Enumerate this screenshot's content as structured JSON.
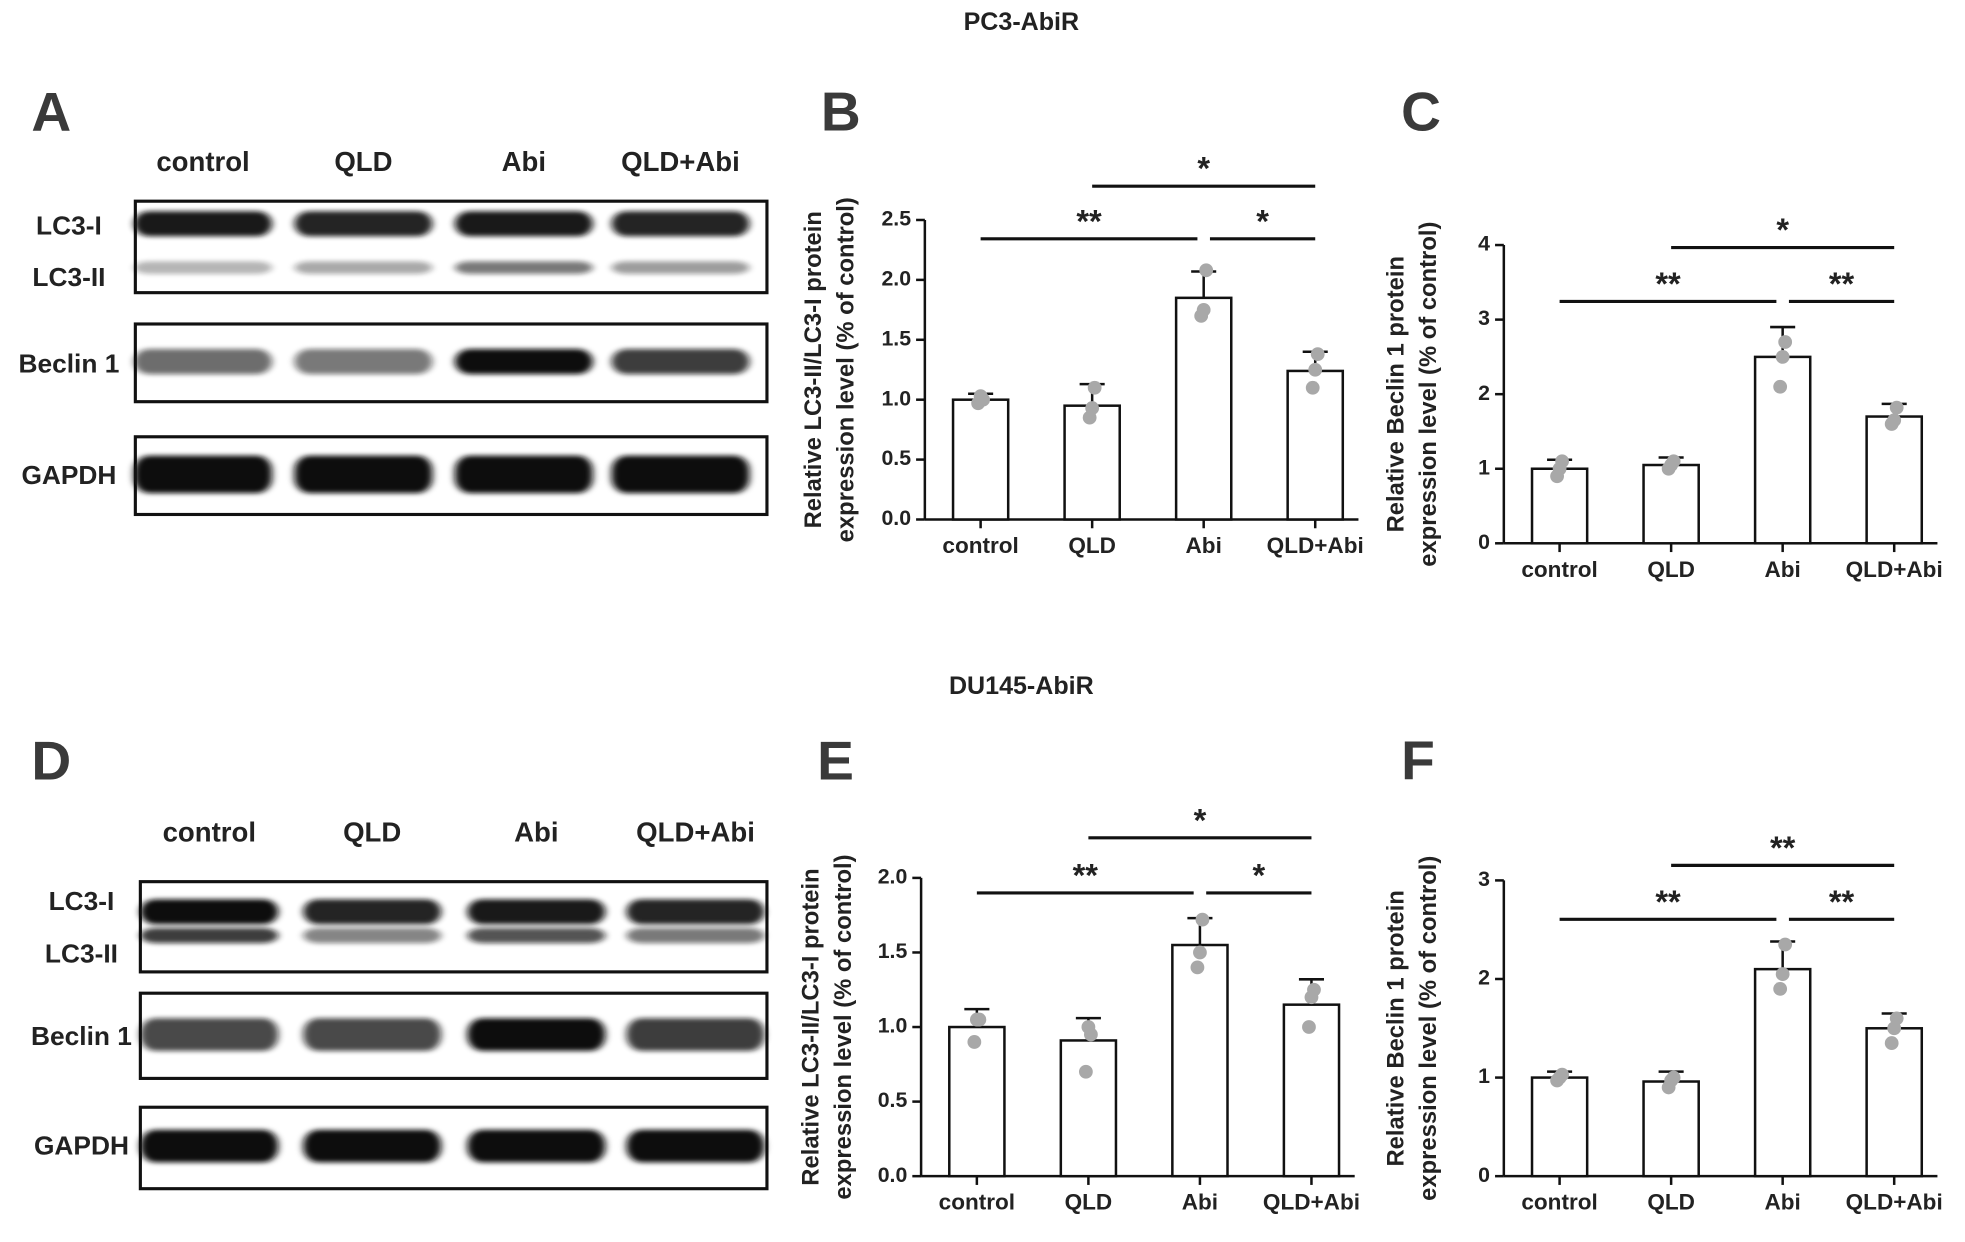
{
  "headings": [
    "PC3-AbiR",
    "DU145-AbiR"
  ],
  "blots": [
    {
      "panel": "A",
      "lanes": [
        "control",
        "QLD",
        "Abi",
        "QLD+Abi"
      ],
      "rows": [
        "LC3-I",
        "LC3-II",
        "Beclin 1",
        "GAPDH"
      ]
    },
    {
      "panel": "D",
      "lanes": [
        "control",
        "QLD",
        "Abi",
        "QLD+Abi"
      ],
      "rows": [
        "LC3-I",
        "LC3-II",
        "Beclin 1",
        "GAPDH"
      ]
    }
  ],
  "chart_data": [
    {
      "type": "bar",
      "panel": "B",
      "ylabel": [
        "Relative LC3-II/LC3-I protein",
        "expression level (% of control)"
      ],
      "categories": [
        "control",
        "QLD",
        "Abi",
        "QLD+Abi"
      ],
      "values": [
        1.0,
        0.95,
        1.85,
        1.24
      ],
      "errors": [
        0.05,
        0.18,
        0.22,
        0.16
      ],
      "points": [
        [
          1.0,
          0.97,
          1.03
        ],
        [
          1.1,
          0.85,
          0.93
        ],
        [
          2.08,
          1.7,
          1.75
        ],
        [
          1.38,
          1.1,
          1.25
        ]
      ],
      "ylim": [
        0,
        2.5
      ],
      "yticks": [
        {
          "value": 0,
          "label": "0.0"
        },
        0.5,
        {
          "value": 1,
          "label": "1.0"
        },
        1.5,
        {
          "value": 2,
          "label": "2.0"
        },
        2.5
      ],
      "significance": [
        {
          "label": "**",
          "from": 0,
          "to": 2
        },
        {
          "label": "*",
          "from": 2,
          "to": 3
        },
        {
          "label": "*",
          "from": 1,
          "to": 3
        }
      ]
    },
    {
      "type": "bar",
      "panel": "C",
      "ylabel": [
        "Relative Beclin 1 protein",
        "expression level (% of control)"
      ],
      "categories": [
        "control",
        "QLD",
        "Abi",
        "QLD+Abi"
      ],
      "values": [
        1.0,
        1.05,
        2.5,
        1.7
      ],
      "errors": [
        0.12,
        0.1,
        0.4,
        0.17
      ],
      "points": [
        [
          1.1,
          0.9,
          1.0
        ],
        [
          1.1,
          1.0,
          1.05
        ],
        [
          2.7,
          2.1,
          2.5
        ],
        [
          1.82,
          1.6,
          1.65
        ]
      ],
      "ylim": [
        0,
        4
      ],
      "yticks": [
        0,
        1,
        2,
        3,
        4
      ],
      "significance": [
        {
          "label": "**",
          "from": 0,
          "to": 2
        },
        {
          "label": "**",
          "from": 2,
          "to": 3
        },
        {
          "label": "*",
          "from": 1,
          "to": 3
        }
      ]
    },
    {
      "type": "bar",
      "panel": "E",
      "ylabel": [
        "Relative LC3-II/LC3-I protein",
        "expression level (% of control)"
      ],
      "categories": [
        "control",
        "QLD",
        "Abi",
        "QLD+Abi"
      ],
      "values": [
        1.0,
        0.91,
        1.55,
        1.15
      ],
      "errors": [
        0.12,
        0.15,
        0.18,
        0.17
      ],
      "points": [
        [
          1.05,
          0.9,
          1.05
        ],
        [
          0.95,
          0.7,
          1.0
        ],
        [
          1.72,
          1.4,
          1.5
        ],
        [
          1.25,
          1.0,
          1.2
        ]
      ],
      "ylim": [
        0,
        2
      ],
      "yticks": [
        {
          "value": 0,
          "label": "0.0"
        },
        0.5,
        {
          "value": 1,
          "label": "1.0"
        },
        1.5,
        {
          "value": 2,
          "label": "2.0"
        }
      ],
      "significance": [
        {
          "label": "**",
          "from": 0,
          "to": 2
        },
        {
          "label": "*",
          "from": 2,
          "to": 3
        },
        {
          "label": "*",
          "from": 1,
          "to": 3
        }
      ]
    },
    {
      "type": "bar",
      "panel": "F",
      "ylabel": [
        "Relative Beclin 1 protein",
        "expression level (% of control)"
      ],
      "categories": [
        "control",
        "QLD",
        "Abi",
        "QLD+Abi"
      ],
      "values": [
        1.0,
        0.96,
        2.1,
        1.5
      ],
      "errors": [
        0.06,
        0.1,
        0.28,
        0.15
      ],
      "points": [
        [
          1.03,
          0.97,
          1.0
        ],
        [
          1.0,
          0.9,
          0.97
        ],
        [
          2.35,
          1.9,
          2.05
        ],
        [
          1.6,
          1.35,
          1.5
        ]
      ],
      "ylim": [
        0,
        3
      ],
      "yticks": [
        0,
        1,
        2,
        3
      ],
      "significance": [
        {
          "label": "**",
          "from": 0,
          "to": 2
        },
        {
          "label": "**",
          "from": 2,
          "to": 3
        },
        {
          "label": "**",
          "from": 1,
          "to": 3
        }
      ]
    }
  ]
}
